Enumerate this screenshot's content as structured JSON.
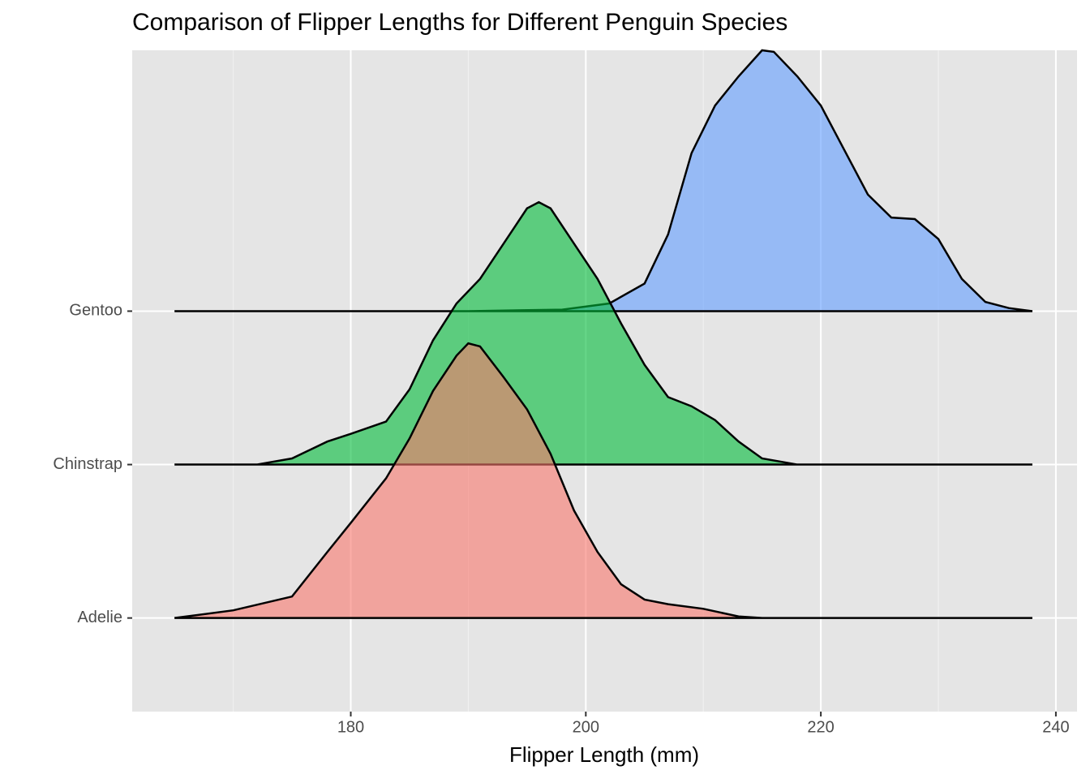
{
  "chart_data": {
    "type": "ridgeline",
    "title": "Comparison of Flipper Lengths for Different Penguin Species",
    "x_label": "Flipper Length (mm)",
    "xlim": [
      161.4,
      241.8
    ],
    "xticks": [
      180,
      200,
      220,
      240
    ],
    "xminor": [
      170,
      190,
      210,
      230
    ],
    "ylim": [
      -0.61,
      3.7
    ],
    "grid": true,
    "series": [
      {
        "name": "Adelie",
        "color": "#F8766D",
        "x": [
          165,
          170,
          175,
          178,
          180,
          183,
          185,
          187,
          189,
          190,
          191,
          193,
          195,
          197,
          199,
          201,
          203,
          205,
          207,
          210,
          213,
          215,
          220,
          225,
          230,
          235,
          238
        ],
        "values": [
          0,
          0.05,
          0.14,
          0.43,
          0.62,
          0.91,
          1.17,
          1.48,
          1.71,
          1.79,
          1.77,
          1.57,
          1.36,
          1.07,
          0.7,
          0.43,
          0.22,
          0.12,
          0.09,
          0.06,
          0.01,
          0,
          0,
          0,
          0,
          0,
          0
        ]
      },
      {
        "name": "Chinstrap",
        "color": "#00BA38",
        "x": [
          165,
          172,
          175,
          178,
          180,
          183,
          185,
          187,
          189,
          191,
          193,
          195,
          196,
          197,
          199,
          201,
          203,
          205,
          207,
          209,
          211,
          213,
          215,
          218,
          225,
          230,
          238
        ],
        "values": [
          0,
          0,
          0.04,
          0.15,
          0.2,
          0.28,
          0.49,
          0.81,
          1.05,
          1.21,
          1.44,
          1.67,
          1.71,
          1.67,
          1.44,
          1.21,
          0.92,
          0.65,
          0.44,
          0.38,
          0.29,
          0.15,
          0.04,
          0,
          0,
          0,
          0
        ]
      },
      {
        "name": "Gentoo",
        "color": "#619CFF",
        "x": [
          165,
          190,
          198,
          202,
          205,
          207,
          209,
          211,
          213,
          215,
          216,
          218,
          220,
          222,
          224,
          226,
          228,
          230,
          232,
          234,
          236,
          238
        ],
        "values": [
          0,
          0,
          0.01,
          0.05,
          0.18,
          0.5,
          1.03,
          1.34,
          1.53,
          1.7,
          1.69,
          1.53,
          1.34,
          1.05,
          0.76,
          0.61,
          0.6,
          0.47,
          0.21,
          0.06,
          0.02,
          0
        ]
      }
    ]
  }
}
